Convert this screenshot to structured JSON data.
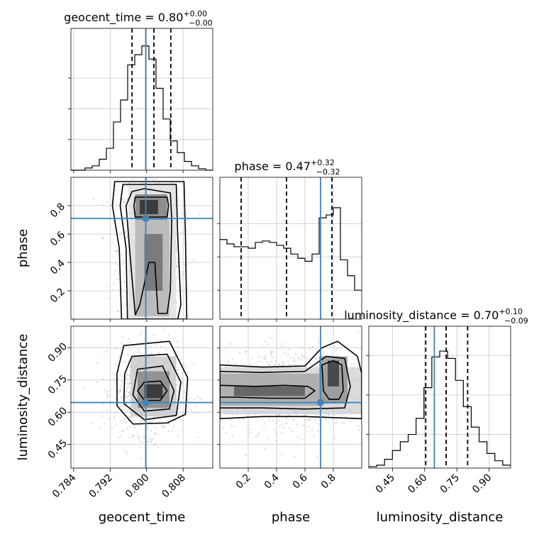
{
  "chart_data": {
    "type": "corner",
    "truth_color": "#4682b4",
    "parameters": [
      {
        "name": "geocent_time",
        "axis_label": "geocent_time",
        "title": {
          "main": "geocent_time = 0.80",
          "plus": "+0.00",
          "minus": "−0.00"
        },
        "range": [
          0.7834,
          0.8145
        ],
        "ticks": [
          {
            "value": 0.784,
            "label": "0.784"
          },
          {
            "value": 0.792,
            "label": "0.792"
          },
          {
            "value": 0.8,
            "label": "0.800"
          },
          {
            "value": 0.808,
            "label": "0.808"
          }
        ],
        "truth": 0.7998,
        "quantiles": [
          0.7968,
          0.8016,
          0.8053
        ],
        "histogram": [
          0,
          0,
          0.015,
          0.03,
          0.075,
          0.15,
          0.33,
          0.48,
          0.72,
          0.79,
          0.85,
          0.76,
          0.56,
          0.35,
          0.2,
          0.12,
          0.06,
          0.03,
          0.01,
          0
        ],
        "hist_ylim": [
          0,
          0.97
        ],
        "hist_yticks": [
          0.21,
          0.42,
          0.63
        ]
      },
      {
        "name": "phase",
        "axis_label": "phase",
        "title": {
          "main": "phase = 0.47",
          "plus": "+0.32",
          "minus": "−0.32"
        },
        "range": [
          0.0,
          1.0
        ],
        "ticks": [
          {
            "value": 0.2,
            "label": "0.2"
          },
          {
            "value": 0.4,
            "label": "0.4"
          },
          {
            "value": 0.6,
            "label": "0.6"
          },
          {
            "value": 0.8,
            "label": "0.8"
          }
        ],
        "truth": 0.71,
        "quantiles": [
          0.15,
          0.47,
          0.79
        ],
        "histogram": [
          0.55,
          0.52,
          0.5,
          0.5,
          0.49,
          0.53,
          0.54,
          0.53,
          0.51,
          0.49,
          0.45,
          0.42,
          0.4,
          0.45,
          0.7,
          0.72,
          0.77,
          0.41,
          0.3,
          0.2
        ],
        "hist_ylim": [
          0,
          0.98
        ],
        "hist_yticks": [
          0.2,
          0.43,
          0.66
        ]
      },
      {
        "name": "luminosity_distance",
        "axis_label": "luminosity_distance",
        "title": {
          "main": "luminosity_distance = 0.70",
          "plus": "+0.10",
          "minus": "−0.09"
        },
        "range": [
          0.34,
          1.0
        ],
        "ticks": [
          {
            "value": 0.45,
            "label": "0.45"
          },
          {
            "value": 0.6,
            "label": "0.60"
          },
          {
            "value": 0.75,
            "label": "0.75"
          },
          {
            "value": 0.9,
            "label": "0.90"
          }
        ],
        "truth": 0.645,
        "quantiles": [
          0.605,
          0.7,
          0.8
        ],
        "histogram": [
          0.01,
          0.02,
          0.06,
          0.12,
          0.18,
          0.23,
          0.34,
          0.55,
          0.76,
          0.8,
          0.75,
          0.6,
          0.42,
          0.28,
          0.18,
          0.1,
          0.05,
          0.02
        ],
        "hist_ylim": [
          0,
          0.97
        ],
        "hist_yticks": [
          0.23,
          0.5,
          0.77
        ]
      }
    ],
    "panels_2d": [
      {
        "x": "geocent_time",
        "y": "phase",
        "scatter_center": [
          0.8005,
          0.5
        ],
        "scatter_spread": [
          0.0035,
          0.3
        ],
        "contours": [
          [
            [
              0.7975,
              0.86
            ],
            [
              0.8045,
              0.86
            ],
            [
              0.8048,
              0.8
            ],
            [
              0.8045,
              0.72
            ],
            [
              0.7975,
              0.72
            ],
            [
              0.7972,
              0.8
            ]
          ],
          [
            [
              0.7968,
              0.9
            ],
            [
              0.7995,
              0.92
            ],
            [
              0.8052,
              0.89
            ],
            [
              0.8055,
              0.7
            ],
            [
              0.8052,
              0.2
            ],
            [
              0.8045,
              0.04
            ],
            [
              0.8025,
              0.04
            ],
            [
              0.8018,
              0.4
            ],
            [
              0.8005,
              0.4
            ],
            [
              0.7985,
              0.1
            ],
            [
              0.7975,
              0.03
            ],
            [
              0.7965,
              0.4
            ],
            [
              0.7955,
              0.8
            ]
          ],
          [
            [
              0.7948,
              0.95
            ],
            [
              0.8065,
              0.95
            ],
            [
              0.8068,
              0.6
            ],
            [
              0.8075,
              0.1
            ],
            [
              0.8068,
              0.0
            ],
            [
              0.7958,
              0.0
            ],
            [
              0.7955,
              0.5
            ],
            [
              0.7942,
              0.8
            ]
          ],
          [
            [
              0.793,
              0.97
            ],
            [
              0.8082,
              0.97
            ],
            [
              0.8085,
              0.6
            ],
            [
              0.8088,
              0.0
            ],
            [
              0.7945,
              0.0
            ],
            [
              0.794,
              0.5
            ],
            [
              0.7925,
              0.8
            ]
          ]
        ],
        "density_blocks": [
          {
            "x": [
              0.7985,
              0.8025
            ],
            "y": [
              0.74,
              0.84
            ],
            "level": 0.95
          },
          {
            "x": [
              0.7975,
              0.8045
            ],
            "y": [
              0.7,
              0.88
            ],
            "level": 0.6
          },
          {
            "x": [
              0.7995,
              0.8035
            ],
            "y": [
              0.2,
              0.6
            ],
            "level": 0.65
          },
          {
            "x": [
              0.7975,
              0.805
            ],
            "y": [
              0.02,
              0.7
            ],
            "level": 0.35
          },
          {
            "x": [
              0.796,
              0.8065
            ],
            "y": [
              0.0,
              0.95
            ],
            "level": 0.15
          }
        ]
      },
      {
        "x": "geocent_time",
        "y": "luminosity_distance",
        "scatter_center": [
          0.8005,
          0.7
        ],
        "scatter_spread": [
          0.0038,
          0.1
        ],
        "contours": [
          [
            [
              0.7995,
              0.74
            ],
            [
              0.803,
              0.745
            ],
            [
              0.8045,
              0.7
            ],
            [
              0.803,
              0.655
            ],
            [
              0.7995,
              0.655
            ],
            [
              0.798,
              0.7
            ]
          ],
          [
            [
              0.798,
              0.8
            ],
            [
              0.8035,
              0.815
            ],
            [
              0.806,
              0.7
            ],
            [
              0.805,
              0.615
            ],
            [
              0.7995,
              0.605
            ],
            [
              0.797,
              0.68
            ]
          ],
          [
            [
              0.7968,
              0.86
            ],
            [
              0.8045,
              0.87
            ],
            [
              0.8075,
              0.74
            ],
            [
              0.8065,
              0.585
            ],
            [
              0.7995,
              0.565
            ],
            [
              0.795,
              0.64
            ],
            [
              0.7952,
              0.78
            ]
          ],
          [
            [
              0.795,
              0.91
            ],
            [
              0.805,
              0.93
            ],
            [
              0.809,
              0.76
            ],
            [
              0.8085,
              0.59
            ],
            [
              0.8045,
              0.55
            ],
            [
              0.797,
              0.545
            ],
            [
              0.7935,
              0.63
            ],
            [
              0.7935,
              0.78
            ]
          ]
        ],
        "density_blocks": [
          {
            "x": [
              0.7995,
              0.8035
            ],
            "y": [
              0.665,
              0.73
            ],
            "level": 0.95
          },
          {
            "x": [
              0.798,
              0.805
            ],
            "y": [
              0.62,
              0.79
            ],
            "level": 0.55
          },
          {
            "x": [
              0.7965,
              0.8065
            ],
            "y": [
              0.58,
              0.86
            ],
            "level": 0.25
          }
        ]
      },
      {
        "x": "phase",
        "y": "luminosity_distance",
        "scatter_center": [
          0.5,
          0.7
        ],
        "scatter_spread": [
          0.3,
          0.1
        ],
        "contours": [
          [
            [
              0.0,
              0.725
            ],
            [
              0.25,
              0.72
            ],
            [
              0.45,
              0.725
            ],
            [
              0.62,
              0.72
            ],
            [
              0.67,
              0.7
            ],
            [
              0.6,
              0.665
            ],
            [
              0.35,
              0.665
            ],
            [
              0.1,
              0.67
            ],
            [
              0.0,
              0.67
            ]
          ],
          [
            [
              0.72,
              0.82
            ],
            [
              0.8,
              0.84
            ],
            [
              0.86,
              0.82
            ],
            [
              0.87,
              0.7
            ],
            [
              0.84,
              0.66
            ],
            [
              0.77,
              0.66
            ],
            [
              0.73,
              0.7
            ]
          ],
          [
            [
              0.0,
              0.79
            ],
            [
              0.3,
              0.785
            ],
            [
              0.6,
              0.79
            ],
            [
              0.75,
              0.86
            ],
            [
              0.88,
              0.85
            ],
            [
              0.92,
              0.72
            ],
            [
              0.88,
              0.62
            ],
            [
              0.6,
              0.615
            ],
            [
              0.3,
              0.62
            ],
            [
              0.0,
              0.62
            ]
          ],
          [
            [
              0.0,
              0.82
            ],
            [
              0.3,
              0.81
            ],
            [
              0.6,
              0.815
            ],
            [
              0.72,
              0.9
            ],
            [
              0.83,
              0.93
            ],
            [
              0.97,
              0.86
            ],
            [
              1.0,
              0.78
            ],
            [
              1.0,
              0.57
            ],
            [
              0.6,
              0.58
            ],
            [
              0.3,
              0.58
            ],
            [
              0.0,
              0.57
            ]
          ]
        ],
        "density_blocks": [
          {
            "x": [
              0.76,
              0.84
            ],
            "y": [
              0.72,
              0.84
            ],
            "level": 0.9
          },
          {
            "x": [
              0.1,
              0.6
            ],
            "y": [
              0.675,
              0.72
            ],
            "level": 0.75
          },
          {
            "x": [
              0.0,
              0.7
            ],
            "y": [
              0.63,
              0.78
            ],
            "level": 0.4
          },
          {
            "x": [
              0.7,
              0.9
            ],
            "y": [
              0.64,
              0.86
            ],
            "level": 0.5
          },
          {
            "x": [
              0.0,
              1.0
            ],
            "y": [
              0.59,
              0.81
            ],
            "level": 0.2
          }
        ]
      }
    ]
  }
}
